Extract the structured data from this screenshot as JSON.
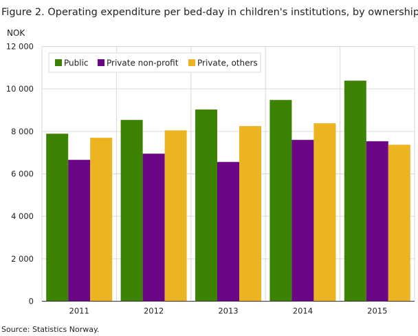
{
  "chart_data": {
    "type": "bar",
    "title": "Figure 2. Operating expenditure per bed-day in children's institutions, by ownership",
    "ylabel": "NOK",
    "xlabel": "",
    "source": "Source: Statistics Norway.",
    "categories": [
      "2011",
      "2012",
      "2013",
      "2014",
      "2015"
    ],
    "ylim": [
      0,
      12000
    ],
    "yticks": [
      0,
      2000,
      4000,
      6000,
      8000,
      10000,
      12000
    ],
    "ytick_labels": [
      "0",
      "2 000",
      "4 000",
      "6 000",
      "8 000",
      "10 000",
      "12 000"
    ],
    "grid": true,
    "legend_position": "top-left",
    "series": [
      {
        "name": "Public",
        "color": "#3d8303",
        "values": [
          7890,
          8540,
          9030,
          9480,
          10390
        ]
      },
      {
        "name": "Private non-profit",
        "color": "#6b0787",
        "values": [
          6660,
          6950,
          6560,
          7600,
          7535
        ]
      },
      {
        "name": "Private, others",
        "color": "#ecb421",
        "values": [
          7700,
          8050,
          8250,
          8380,
          7370
        ]
      }
    ]
  }
}
